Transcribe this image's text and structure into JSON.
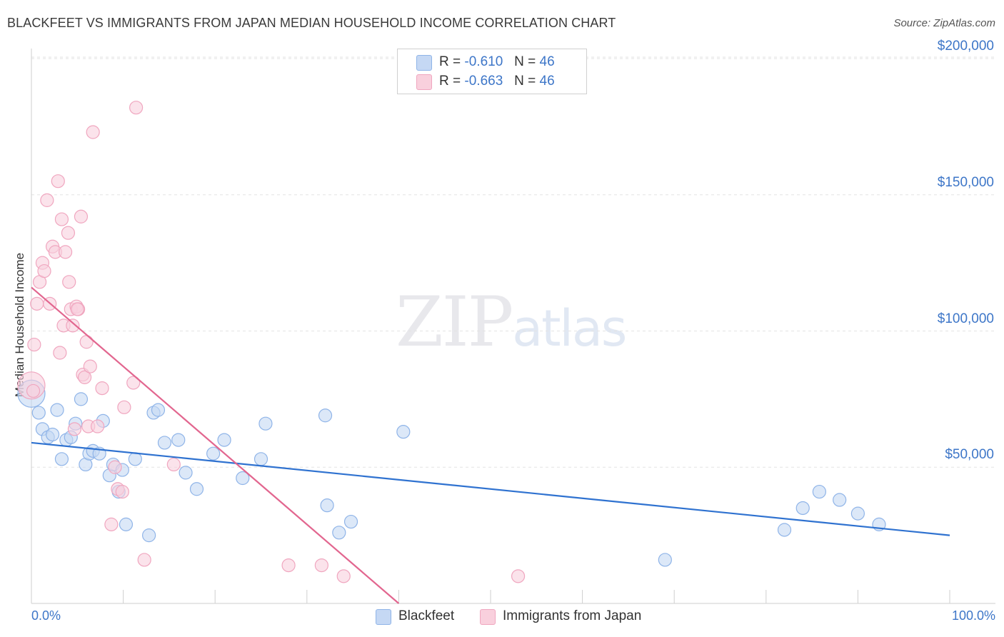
{
  "chart_data": {
    "type": "scatter",
    "title": "BLACKFEET VS IMMIGRANTS FROM JAPAN MEDIAN HOUSEHOLD INCOME CORRELATION CHART",
    "source": "Source: ZipAtlas.com",
    "ylabel": "Median Household Income",
    "xlabel": "",
    "xlim": [
      0,
      100
    ],
    "ylim": [
      0,
      200000
    ],
    "x_tick_labels": [
      "0.0%",
      "100.0%"
    ],
    "y_ticks": [
      50000,
      100000,
      150000,
      200000
    ],
    "y_tick_labels": [
      "$50,000",
      "$100,000",
      "$150,000",
      "$200,000"
    ],
    "grid": true,
    "watermark": {
      "zip": "ZIP",
      "atlas": "atlas"
    },
    "legend_stats": [
      {
        "r_label": "R =",
        "r_value": "-0.610",
        "n_label": "N =",
        "n_value": "46"
      },
      {
        "r_label": "R =",
        "r_value": "-0.663",
        "n_label": "N =",
        "n_value": "46"
      }
    ],
    "series": [
      {
        "name": "Blackfeet",
        "color": "#8fb4e8",
        "fill": "#c5d8f4",
        "line_color": "#2f72d0",
        "trend": {
          "x": [
            0,
            100
          ],
          "y": [
            59000,
            25000
          ]
        },
        "points": [
          [
            0.0,
            77000
          ],
          [
            0.8,
            70000
          ],
          [
            1.2,
            64000
          ],
          [
            1.8,
            61000
          ],
          [
            2.3,
            62000
          ],
          [
            2.8,
            71000
          ],
          [
            3.3,
            53000
          ],
          [
            3.8,
            60000
          ],
          [
            4.3,
            61000
          ],
          [
            4.8,
            66000
          ],
          [
            5.4,
            75000
          ],
          [
            5.9,
            51000
          ],
          [
            6.3,
            55000
          ],
          [
            6.7,
            56000
          ],
          [
            7.4,
            55000
          ],
          [
            7.8,
            67000
          ],
          [
            8.5,
            47000
          ],
          [
            8.9,
            51000
          ],
          [
            9.5,
            41000
          ],
          [
            9.9,
            49000
          ],
          [
            10.3,
            29000
          ],
          [
            11.3,
            53000
          ],
          [
            12.8,
            25000
          ],
          [
            13.3,
            70000
          ],
          [
            13.8,
            71000
          ],
          [
            14.5,
            59000
          ],
          [
            16.0,
            60000
          ],
          [
            16.8,
            48000
          ],
          [
            18.0,
            42000
          ],
          [
            19.8,
            55000
          ],
          [
            21.0,
            60000
          ],
          [
            23.0,
            46000
          ],
          [
            25.0,
            53000
          ],
          [
            25.5,
            66000
          ],
          [
            32.0,
            69000
          ],
          [
            32.2,
            36000
          ],
          [
            33.5,
            26000
          ],
          [
            34.8,
            30000
          ],
          [
            40.5,
            63000
          ],
          [
            69.0,
            16000
          ],
          [
            82.0,
            27000
          ],
          [
            84.0,
            35000
          ],
          [
            85.8,
            41000
          ],
          [
            88.0,
            38000
          ],
          [
            90.0,
            33000
          ],
          [
            92.3,
            29000
          ]
        ]
      },
      {
        "name": "Immigrants from Japan",
        "color": "#f0a6bf",
        "fill": "#f9d0dd",
        "line_color": "#e2668f",
        "trend": {
          "x": [
            0,
            40
          ],
          "y": [
            116000,
            0
          ]
        },
        "points": [
          [
            0.0,
            80000
          ],
          [
            0.3,
            95000
          ],
          [
            0.6,
            110000
          ],
          [
            0.9,
            118000
          ],
          [
            1.2,
            125000
          ],
          [
            1.4,
            122000
          ],
          [
            1.7,
            148000
          ],
          [
            2.0,
            110000
          ],
          [
            2.3,
            131000
          ],
          [
            2.6,
            129000
          ],
          [
            2.9,
            155000
          ],
          [
            3.1,
            92000
          ],
          [
            3.3,
            141000
          ],
          [
            3.5,
            102000
          ],
          [
            3.7,
            129000
          ],
          [
            4.0,
            136000
          ],
          [
            4.1,
            118000
          ],
          [
            4.3,
            108000
          ],
          [
            4.5,
            102000
          ],
          [
            4.7,
            64000
          ],
          [
            4.9,
            109000
          ],
          [
            5.1,
            108000
          ],
          [
            5.4,
            142000
          ],
          [
            5.6,
            84000
          ],
          [
            5.8,
            83000
          ],
          [
            6.0,
            96000
          ],
          [
            6.2,
            65000
          ],
          [
            6.4,
            87000
          ],
          [
            6.7,
            173000
          ],
          [
            7.2,
            65000
          ],
          [
            7.7,
            79000
          ],
          [
            8.7,
            29000
          ],
          [
            9.1,
            50000
          ],
          [
            9.4,
            42000
          ],
          [
            9.9,
            41000
          ],
          [
            10.1,
            72000
          ],
          [
            11.1,
            81000
          ],
          [
            11.4,
            182000
          ],
          [
            12.3,
            16000
          ],
          [
            15.5,
            51000
          ],
          [
            28.0,
            14000
          ],
          [
            31.6,
            14000
          ],
          [
            34.0,
            10000
          ],
          [
            53.0,
            10000
          ],
          [
            0.2,
            78000
          ],
          [
            5.0,
            108000
          ]
        ]
      }
    ]
  }
}
